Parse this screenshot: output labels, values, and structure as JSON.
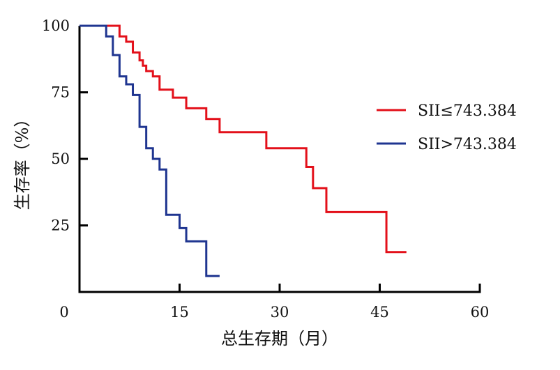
{
  "chart_data": {
    "type": "line",
    "title": "",
    "xlabel": "总生存期（月）",
    "ylabel": "生存率（%）",
    "xlim": [
      0,
      60
    ],
    "ylim": [
      0,
      100
    ],
    "xticks": [
      0,
      15,
      30,
      45,
      60
    ],
    "yticks": [
      25,
      50,
      75,
      100
    ],
    "x_tick_labels": [
      "0",
      "15",
      "30",
      "45",
      "60"
    ],
    "y_tick_labels": [
      "25",
      "50",
      "75",
      "100"
    ],
    "grid": false,
    "legend_position": "right",
    "step": true,
    "series": [
      {
        "name": "SII≤743.384",
        "color": "#e3101a",
        "x": [
          0,
          6,
          7,
          8,
          9,
          9.5,
          10,
          11,
          12,
          14,
          16,
          19,
          21,
          28,
          34,
          35,
          37,
          46,
          49
        ],
        "y": [
          100,
          96,
          94,
          90,
          87,
          85,
          83,
          81,
          76,
          73,
          69,
          65,
          60,
          54,
          47,
          39,
          30,
          15,
          15
        ]
      },
      {
        "name": "SII>743.384",
        "color": "#1f3590",
        "x": [
          0,
          4,
          5,
          6,
          7,
          8,
          9,
          10,
          11,
          12,
          13,
          15,
          16,
          19,
          21
        ],
        "y": [
          100,
          96,
          89,
          81,
          78,
          74,
          62,
          54,
          50,
          46,
          29,
          24,
          19,
          6,
          6
        ]
      }
    ]
  }
}
